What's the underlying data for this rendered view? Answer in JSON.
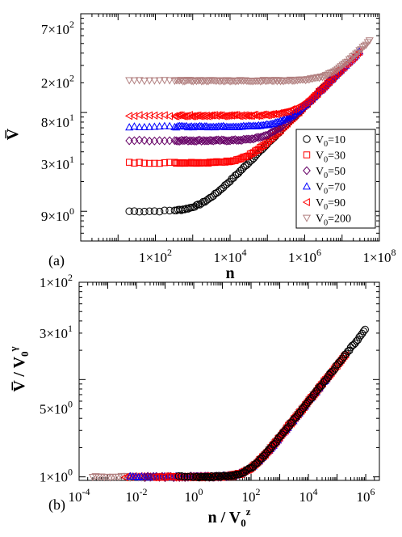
{
  "chart_data": [
    {
      "panel_label": "(a)",
      "type": "scatter",
      "xscale": "log",
      "yscale": "log",
      "xlabel": "n",
      "ylabel": "V̅",
      "xlim": [
        1,
        100000000
      ],
      "ylim": [
        5,
        1000
      ],
      "x_ticks": [
        {
          "value": 100,
          "mant": "1×10",
          "exp": "2"
        },
        {
          "value": 10000,
          "mant": "1×10",
          "exp": "4"
        },
        {
          "value": 1000000,
          "mant": "1×10",
          "exp": "6"
        },
        {
          "value": 100000000,
          "mant": "1×10",
          "exp": "8"
        }
      ],
      "y_ticks": [
        {
          "value": 9,
          "mant": "9×10",
          "exp": "0"
        },
        {
          "value": 30,
          "mant": "3×10",
          "exp": "1"
        },
        {
          "value": 80,
          "mant": "8×10",
          "exp": "1"
        },
        {
          "value": 200,
          "mant": "2×10",
          "exp": "2"
        },
        {
          "value": 700,
          "mant": "7×10",
          "exp": "2"
        }
      ],
      "legend": {
        "position": "lower-right",
        "entries": [
          {
            "label_main": "V",
            "label_sub": "0",
            "label_rest": "=10"
          },
          {
            "label_main": "V",
            "label_sub": "0",
            "label_rest": "=30"
          },
          {
            "label_main": "V",
            "label_sub": "0",
            "label_rest": "=50"
          },
          {
            "label_main": "V",
            "label_sub": "0",
            "label_rest": "=70"
          },
          {
            "label_main": "V",
            "label_sub": "0",
            "label_rest": "=90"
          },
          {
            "label_main": "V",
            "label_sub": "0",
            "label_rest": "=200"
          }
        ]
      },
      "series": [
        {
          "V0": 10,
          "marker": "circle",
          "color": "#000000",
          "plateau": 10,
          "x_start": 20,
          "x_max": 10000000
        },
        {
          "V0": 30,
          "marker": "square",
          "color": "#ff0000",
          "plateau": 31,
          "x_start": 20,
          "x_max": 10000000
        },
        {
          "V0": 50,
          "marker": "diamond",
          "color": "#660066",
          "plateau": 52,
          "x_start": 20,
          "x_max": 10000000
        },
        {
          "V0": 70,
          "marker": "triangle-up",
          "color": "#0000ff",
          "plateau": 72,
          "x_start": 20,
          "x_max": 30000000
        },
        {
          "V0": 90,
          "marker": "triangle-left",
          "color": "#ff0000",
          "plateau": 93,
          "x_start": 20,
          "x_max": 30000000
        },
        {
          "V0": 200,
          "marker": "triangle-down",
          "color": "#b28080",
          "plateau": 210,
          "x_start": 20,
          "x_max": 60000000
        }
      ],
      "asymptote": {
        "description": "all series merge onto a common power law at large n",
        "exponent": 0.38,
        "x_ref": 100000,
        "y_ref": 48
      }
    },
    {
      "panel_label": "(b)",
      "type": "scatter",
      "xscale": "log",
      "yscale": "log",
      "xlabel_main": "n / V",
      "xlabel_sub": "0",
      "xlabel_sup": "z",
      "ylabel_main": "V̅ / V",
      "ylabel_sub": "0",
      "ylabel_sup": "γ",
      "xlim": [
        0.0001,
        3000000
      ],
      "ylim": [
        0.92,
        100
      ],
      "x_ticks": [
        {
          "value": 0.0001,
          "mant": "10",
          "exp": "-4"
        },
        {
          "value": 0.01,
          "mant": "10",
          "exp": "-2"
        },
        {
          "value": 1,
          "mant": "10",
          "exp": "0"
        },
        {
          "value": 100,
          "mant": "10",
          "exp": "2"
        },
        {
          "value": 10000,
          "mant": "10",
          "exp": "4"
        },
        {
          "value": 1000000,
          "mant": "10",
          "exp": "6"
        }
      ],
      "y_ticks": [
        {
          "value": 1,
          "mant": "1×10",
          "exp": "0"
        },
        {
          "value": 5,
          "mant": "5×10",
          "exp": "0"
        },
        {
          "value": 30,
          "mant": "3×10",
          "exp": "1"
        },
        {
          "value": 100,
          "mant": "1×10",
          "exp": "2"
        }
      ],
      "collapse": {
        "plateau": 1.0,
        "crossover_x": 80,
        "exponent": 0.37,
        "x_max": 1000000
      },
      "series": [
        {
          "V0": 10,
          "marker": "circle",
          "color": "#000000",
          "x_min": 0.3,
          "x_max": 1000000
        },
        {
          "V0": 30,
          "marker": "square",
          "color": "#ff0000",
          "x_min": 0.05,
          "x_max": 200000
        },
        {
          "V0": 50,
          "marker": "diamond",
          "color": "#660066",
          "x_min": 0.02,
          "x_max": 60000
        },
        {
          "V0": 70,
          "marker": "triangle-up",
          "color": "#0000ff",
          "x_min": 0.006,
          "x_max": 60000
        },
        {
          "V0": 90,
          "marker": "triangle-left",
          "color": "#ff0000",
          "x_min": 0.004,
          "x_max": 60000
        },
        {
          "V0": 200,
          "marker": "triangle-down",
          "color": "#b28080",
          "x_min": 0.0003,
          "x_max": 20000
        }
      ]
    }
  ]
}
